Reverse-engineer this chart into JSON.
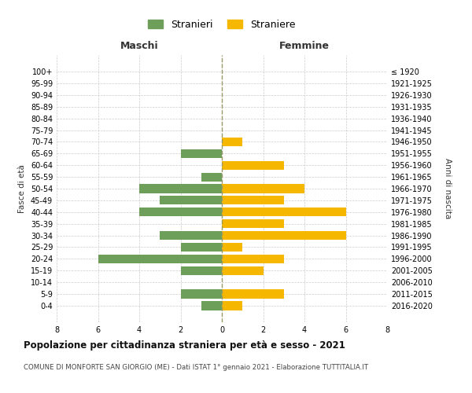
{
  "age_groups": [
    "100+",
    "95-99",
    "90-94",
    "85-89",
    "80-84",
    "75-79",
    "70-74",
    "65-69",
    "60-64",
    "55-59",
    "50-54",
    "45-49",
    "40-44",
    "35-39",
    "30-34",
    "25-29",
    "20-24",
    "15-19",
    "10-14",
    "5-9",
    "0-4"
  ],
  "birth_years": [
    "≤ 1920",
    "1921-1925",
    "1926-1930",
    "1931-1935",
    "1936-1940",
    "1941-1945",
    "1946-1950",
    "1951-1955",
    "1956-1960",
    "1961-1965",
    "1966-1970",
    "1971-1975",
    "1976-1980",
    "1981-1985",
    "1986-1990",
    "1991-1995",
    "1996-2000",
    "2001-2005",
    "2006-2010",
    "2011-2015",
    "2016-2020"
  ],
  "maschi": [
    0,
    0,
    0,
    0,
    0,
    0,
    0,
    2,
    0,
    1,
    4,
    3,
    4,
    0,
    3,
    2,
    6,
    2,
    0,
    2,
    1
  ],
  "femmine": [
    0,
    0,
    0,
    0,
    0,
    0,
    1,
    0,
    3,
    0,
    4,
    3,
    6,
    3,
    6,
    1,
    3,
    2,
    0,
    3,
    1
  ],
  "color_maschi": "#6d9e5a",
  "color_femmine": "#f5b700",
  "background_color": "#ffffff",
  "grid_color": "#cccccc",
  "title": "Popolazione per cittadinanza straniera per età e sesso - 2021",
  "subtitle": "COMUNE DI MONFORTE SAN GIORGIO (ME) - Dati ISTAT 1° gennaio 2021 - Elaborazione TUTTITALIA.IT",
  "ylabel_left": "Fasce di età",
  "ylabel_right": "Anni di nascita",
  "xlabel_left": "Maschi",
  "xlabel_right": "Femmine",
  "legend_stranieri": "Stranieri",
  "legend_straniere": "Straniere",
  "xlim": 8,
  "bar_height": 0.75
}
